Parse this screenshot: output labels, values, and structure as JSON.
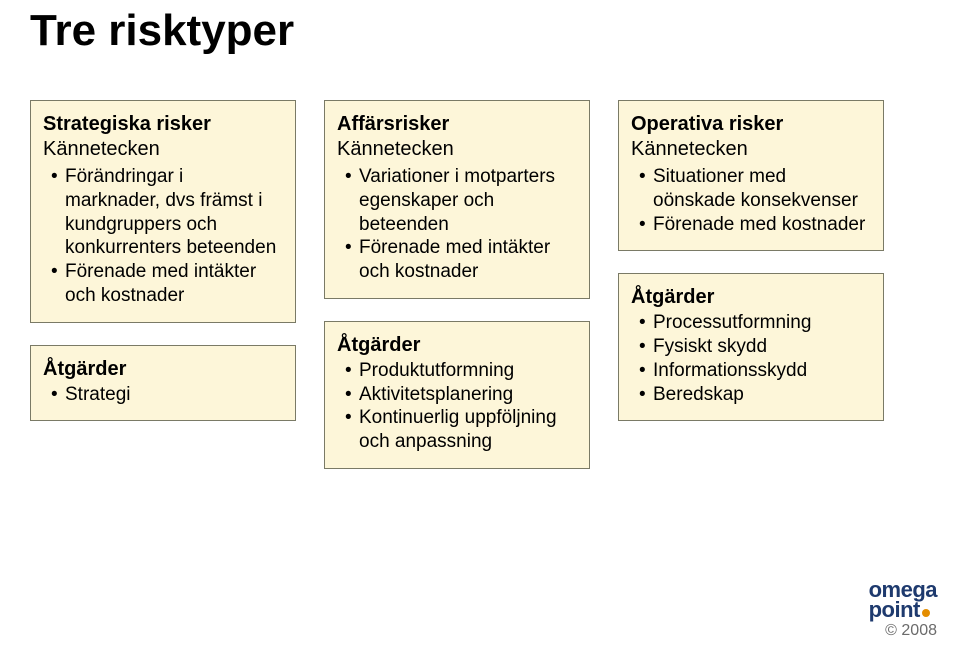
{
  "title": "Tre risktyper",
  "columns": [
    {
      "top": {
        "title": "Strategiska risker",
        "subtitle": "Kännetecken",
        "items": [
          "Förändringar i marknader, dvs främst i kundgruppers och konkurrenters beteenden",
          "Förenade med intäkter och kostnader"
        ]
      },
      "bottom": {
        "title": "Åtgärder",
        "items": [
          "Strategi"
        ]
      }
    },
    {
      "top": {
        "title": "Affärsrisker",
        "subtitle": "Kännetecken",
        "items": [
          "Variationer i motparters egenskaper och beteenden",
          "Förenade med intäkter och kostnader"
        ]
      },
      "bottom": {
        "title": "Åtgärder",
        "items": [
          "Produktutformning",
          "Aktivitetsplanering",
          "Kontinuerlig uppföljning och anpassning"
        ]
      }
    },
    {
      "top": {
        "title": "Operativa risker",
        "subtitle": "Kännetecken",
        "items": [
          "Situationer med oönskade konsekvenser",
          "Förenade med kostnader"
        ]
      },
      "bottom": {
        "title": "Åtgärder",
        "items": [
          "Processutformning",
          "Fysiskt skydd",
          "Informationsskydd",
          "Beredskap"
        ]
      }
    }
  ],
  "style": {
    "box_bg": "#fdf6d9",
    "box_border": "#7a7a66",
    "title_fontsize": 44,
    "box_title_fontsize": 20,
    "item_fontsize": 19,
    "page_bg": "#ffffff"
  },
  "footer": {
    "logo_line1": "omega",
    "logo_line2": "point",
    "logo_color": "#1e3a6e",
    "dot_color": "#e48d00",
    "copyright": "© 2008"
  }
}
